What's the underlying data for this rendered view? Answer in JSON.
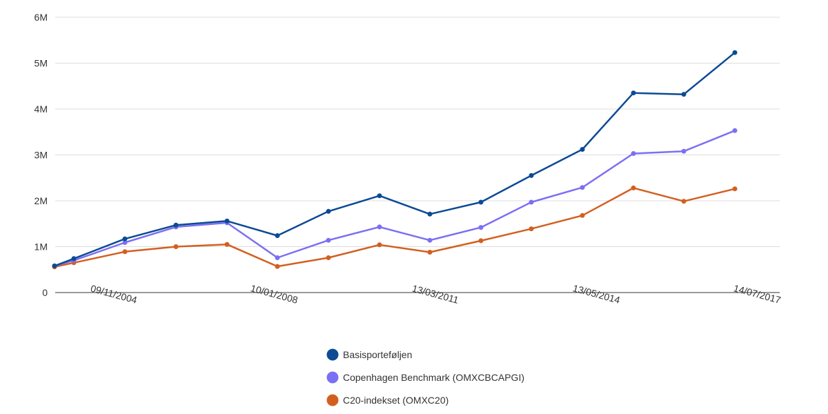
{
  "chart_data": {
    "type": "line",
    "title": "",
    "xlabel": "",
    "ylabel": "",
    "ylim": [
      0,
      6000000
    ],
    "y_ticks": [
      0,
      1000000,
      2000000,
      3000000,
      4000000,
      5000000,
      6000000
    ],
    "y_tick_labels": [
      "0",
      "1M",
      "2M",
      "3M",
      "4M",
      "5M",
      "6M"
    ],
    "x_tick_labels": [
      "09/11/2004",
      "10/01/2008",
      "13/03/2011",
      "13/05/2014",
      "14/07/2017"
    ],
    "grid": true,
    "legend": "bottom",
    "series": [
      {
        "name": "Basisporteføljen",
        "color": "#0c4a94",
        "values": [
          580000,
          740000,
          1170000,
          1470000,
          1560000,
          1240000,
          1770000,
          2110000,
          1710000,
          1970000,
          2550000,
          3120000,
          4350000,
          4320000,
          5230000
        ]
      },
      {
        "name": "Copenhagen Benchmark (OMXCBCAPGI)",
        "color": "#7b6ff3",
        "values": [
          580000,
          700000,
          1090000,
          1430000,
          1520000,
          760000,
          1140000,
          1430000,
          1140000,
          1420000,
          1970000,
          2290000,
          3030000,
          3080000,
          3530000
        ]
      },
      {
        "name": "C20-indekset (OMXC20)",
        "color": "#d35f1f",
        "values": [
          560000,
          650000,
          890000,
          1000000,
          1050000,
          570000,
          760000,
          1040000,
          880000,
          1130000,
          1390000,
          1680000,
          2280000,
          1990000,
          2260000
        ]
      }
    ]
  }
}
